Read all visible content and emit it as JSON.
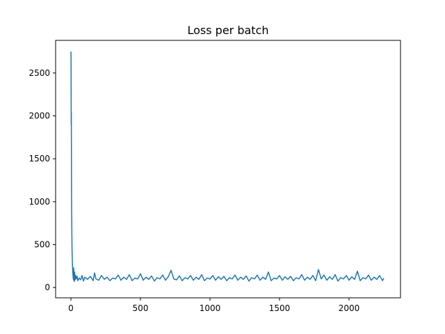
{
  "chart_data": {
    "type": "line",
    "title": "Loss per batch",
    "xlabel": "",
    "ylabel": "",
    "xlim": [
      -110,
      2370
    ],
    "ylim": [
      -120,
      2880
    ],
    "xticks": [
      0,
      500,
      1000,
      1500,
      2000
    ],
    "yticks": [
      0,
      500,
      1000,
      1500,
      2000,
      2500
    ],
    "grid": false,
    "legend": "none",
    "line_color": "#1f77b4",
    "series": [
      {
        "x": [
          0,
          1,
          2,
          3,
          4,
          5,
          6,
          7,
          8,
          10,
          12,
          14,
          16,
          18,
          20,
          22,
          24,
          26,
          28,
          30,
          35,
          40,
          45,
          50,
          60,
          70,
          80,
          90,
          100,
          120,
          140,
          160,
          170,
          180,
          200,
          220,
          240,
          260,
          280,
          300,
          320,
          340,
          360,
          380,
          400,
          420,
          440,
          460,
          480,
          500,
          520,
          540,
          560,
          580,
          600,
          620,
          640,
          660,
          680,
          700,
          720,
          740,
          760,
          780,
          800,
          820,
          840,
          860,
          880,
          900,
          920,
          940,
          960,
          980,
          1000,
          1020,
          1040,
          1060,
          1080,
          1100,
          1120,
          1140,
          1160,
          1180,
          1200,
          1220,
          1240,
          1260,
          1280,
          1300,
          1320,
          1340,
          1360,
          1380,
          1400,
          1420,
          1440,
          1460,
          1480,
          1500,
          1520,
          1540,
          1560,
          1580,
          1600,
          1620,
          1640,
          1660,
          1680,
          1700,
          1720,
          1740,
          1760,
          1780,
          1800,
          1820,
          1840,
          1860,
          1880,
          1900,
          1920,
          1940,
          1960,
          1980,
          2000,
          2020,
          2040,
          2060,
          2080,
          2100,
          2120,
          2140,
          2160,
          2180,
          2200,
          2220,
          2240,
          2250
        ],
        "y": [
          2750,
          2700,
          1900,
          2050,
          1300,
          900,
          780,
          600,
          450,
          320,
          220,
          160,
          120,
          90,
          230,
          100,
          70,
          180,
          150,
          90,
          140,
          100,
          130,
          80,
          110,
          90,
          140,
          75,
          120,
          95,
          130,
          80,
          170,
          100,
          85,
          140,
          95,
          120,
          80,
          110,
          100,
          145,
          85,
          120,
          95,
          150,
          80,
          110,
          100,
          160,
          85,
          120,
          95,
          135,
          75,
          115,
          100,
          145,
          85,
          125,
          200,
          100,
          90,
          135,
          80,
          115,
          100,
          140,
          85,
          120,
          95,
          150,
          80,
          110,
          100,
          140,
          85,
          125,
          95,
          130,
          80,
          115,
          100,
          145,
          85,
          120,
          95,
          135,
          75,
          115,
          100,
          145,
          85,
          120,
          95,
          180,
          80,
          110,
          100,
          140,
          85,
          125,
          95,
          130,
          80,
          115,
          100,
          150,
          85,
          120,
          95,
          140,
          80,
          210,
          100,
          145,
          85,
          125,
          95,
          150,
          75,
          115,
          100,
          140,
          85,
          125,
          95,
          190,
          80,
          115,
          100,
          145,
          85,
          120,
          95,
          140,
          80,
          110
        ]
      }
    ]
  }
}
